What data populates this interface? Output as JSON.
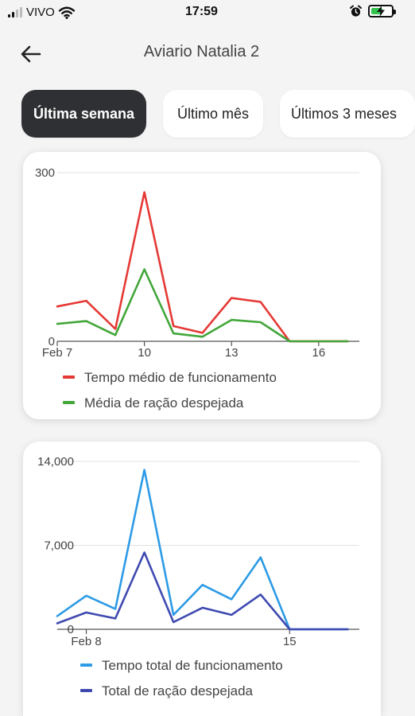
{
  "status_bar": {
    "carrier": "VIVO",
    "time": "17:59",
    "icons": [
      "signal-icon",
      "wifi-icon",
      "alarm-icon",
      "battery-charging-icon"
    ],
    "battery_level": 0.6
  },
  "header": {
    "title": "Aviario Natalia 2",
    "back_icon": "arrow-left-icon"
  },
  "period_tabs": {
    "selected": "Última semana",
    "items": [
      "Última semana",
      "Último mês",
      "Últimos 3 meses"
    ]
  },
  "colors": {
    "background": "#f4f4f4",
    "active_tab": "#2e3033",
    "red": "#e53935",
    "green": "#43a63a",
    "light_blue": "#2d9be6",
    "dark_blue": "#3f4ab0",
    "grid": "#e2e2e2"
  },
  "chart_data": [
    {
      "type": "line",
      "x": [
        7,
        8,
        9,
        10,
        11,
        12,
        13,
        14,
        15,
        16,
        17
      ],
      "xlim": [
        7,
        17.4
      ],
      "x_ticks": [
        7,
        10,
        13,
        16
      ],
      "x_tick_labels": [
        "Feb 7",
        "10",
        "13",
        "16"
      ],
      "ylim": [
        0,
        300
      ],
      "y_ticks": [
        0,
        300
      ],
      "y_tick_labels": [
        "0",
        "300"
      ],
      "grid": true,
      "legend_position": "bottom",
      "series": [
        {
          "name": "Tempo médio de funcionamento",
          "color": "#e53935",
          "values": [
            62,
            72,
            22,
            265,
            27,
            15,
            77,
            70,
            0,
            0,
            0
          ]
        },
        {
          "name": "Média de ração despejada",
          "color": "#43a63a",
          "values": [
            31,
            36,
            11,
            128,
            14,
            8,
            38,
            34,
            0,
            0,
            0
          ]
        }
      ]
    },
    {
      "type": "line",
      "x": [
        7,
        8,
        9,
        10,
        11,
        12,
        13,
        14,
        15,
        16,
        17
      ],
      "xlim": [
        7,
        17.4
      ],
      "x_ticks": [
        8,
        15
      ],
      "x_tick_labels": [
        "Feb 8",
        "15"
      ],
      "ylim": [
        0,
        14000
      ],
      "y_ticks": [
        0,
        7000,
        14000
      ],
      "y_tick_labels": [
        "0",
        "7,000",
        "14,000"
      ],
      "grid": true,
      "legend_position": "bottom",
      "series": [
        {
          "name": "Tempo total de funcionamento",
          "color": "#2d9be6",
          "values": [
            1100,
            2800,
            1700,
            13300,
            1200,
            3700,
            2500,
            6000,
            0,
            0,
            0
          ]
        },
        {
          "name": "Total de ração despejada",
          "color": "#3f4ab0",
          "values": [
            500,
            1400,
            900,
            6400,
            600,
            1800,
            1200,
            2900,
            0,
            0,
            0
          ]
        }
      ]
    }
  ]
}
